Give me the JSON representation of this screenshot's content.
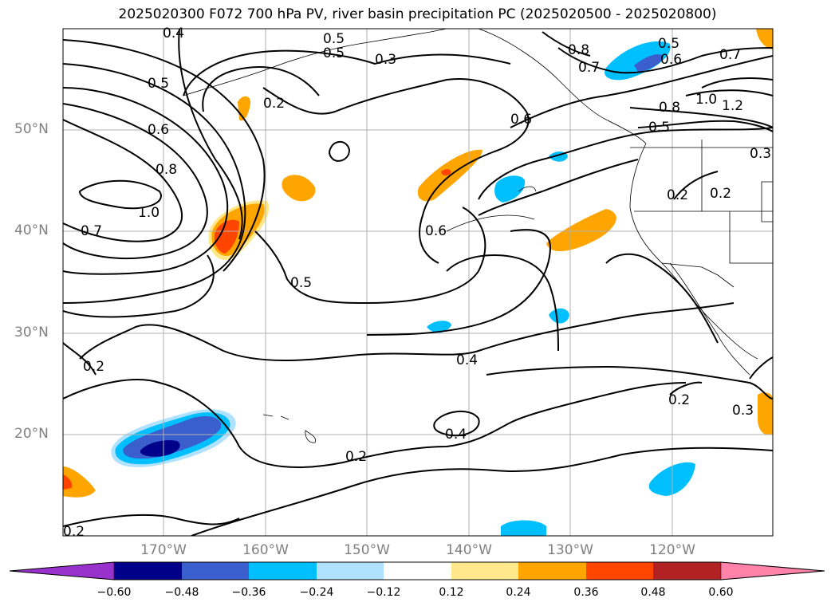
{
  "title": "2025020300 F072 700 hPa PV, river basin precipitation PC (2025020500 - 2025020800)",
  "lat_labels": [
    "50°N",
    "40°N",
    "30°N",
    "20°N"
  ],
  "lon_labels": [
    "170°W",
    "160°W",
    "150°W",
    "140°W",
    "130°W",
    "120°W"
  ],
  "contour_labels": [
    "0.4",
    "0.5",
    "0.5",
    "0.3",
    "0.2",
    "0.5",
    "0.6",
    "0.8",
    "1.0",
    "0.7",
    "0.5",
    "0.2",
    "0.6",
    "0.6",
    "0.4",
    "0.2",
    "0.4",
    "0.2",
    "0.8",
    "0.7",
    "0.5",
    "0.6",
    "0.7",
    "1.0",
    "1.2",
    "0.8",
    "0.5",
    "0.3",
    "0.2",
    "0.2",
    "0.3",
    "0.2"
  ],
  "colorbar": {
    "ticks": [
      "−0.60",
      "−0.48",
      "−0.36",
      "−0.24",
      "−0.12",
      "0.12",
      "0.24",
      "0.36",
      "0.48",
      "0.60"
    ],
    "colors": [
      "#9932cc",
      "#00008b",
      "#3a5fcd",
      "#00bfff",
      "#b0e2ff",
      "#ffffff",
      "#ffe88a",
      "#ffa500",
      "#ff4500",
      "#b22222",
      "#ff82ab"
    ]
  },
  "palette": {
    "neg_light": "#b0e2ff",
    "neg_mid": "#00bfff",
    "neg_strong": "#3a5fcd",
    "neg_max": "#00008b",
    "pos_light": "#ffe88a",
    "pos_mid": "#ffa500",
    "pos_strong": "#ff4500",
    "grid": "#b0b0b0",
    "axis_label": "#808080"
  }
}
